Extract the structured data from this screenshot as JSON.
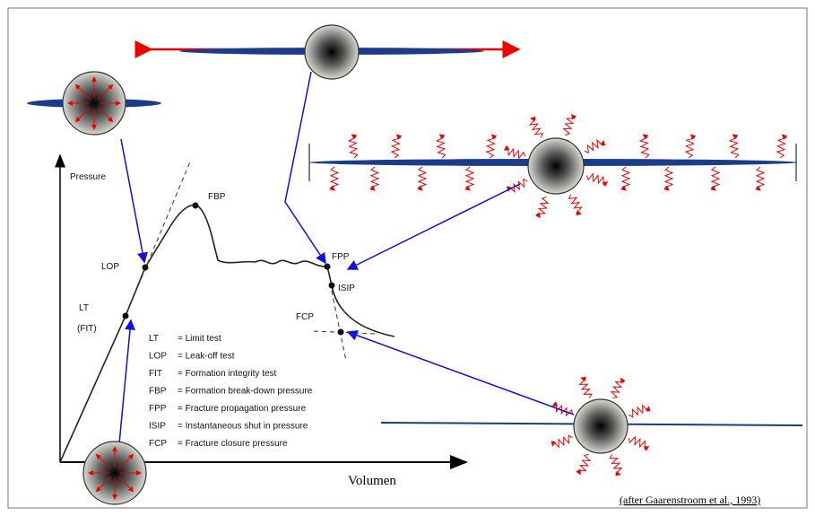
{
  "labels": {
    "pressure": "Pressure",
    "fbp": "FBP",
    "lop": "LOP",
    "lt": "LT",
    "fit": "(FIT)",
    "fpp": "FPP",
    "isip": "ISIP",
    "fcp": "FCP"
  },
  "legend": [
    {
      "abbr": "LT",
      "desc": "= Limit test"
    },
    {
      "abbr": "LOP",
      "desc": "= Leak-off test"
    },
    {
      "abbr": "FIT",
      "desc": "= Formation integrity test"
    },
    {
      "abbr": "FBP",
      "desc": "= Formation break-down pressure"
    },
    {
      "abbr": "FPP",
      "desc": "= Fracture propagation pressure"
    },
    {
      "abbr": "ISIP",
      "desc": "= Instantaneous shut in pressure"
    },
    {
      "abbr": "FCP",
      "desc": "= Fracture closure pressure"
    }
  ],
  "x_label": "Volumen",
  "citation": "(after Gaarenstroom et al., 1993)"
}
